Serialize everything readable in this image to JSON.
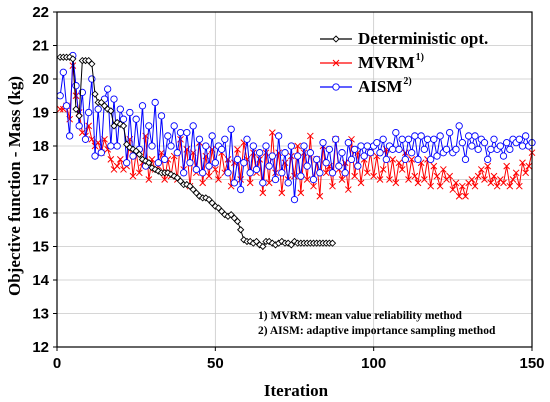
{
  "chart_data": {
    "type": "line",
    "xlabel": "Iteration",
    "ylabel": "Objective function - Mass (kg)",
    "xlim": [
      0,
      150
    ],
    "ylim": [
      12,
      22
    ],
    "x_ticks": [
      "0",
      "50",
      "100",
      "150"
    ],
    "y_ticks": [
      "12",
      "13",
      "14",
      "15",
      "16",
      "17",
      "18",
      "19",
      "20",
      "21",
      "22"
    ],
    "legend_position": "top-right",
    "series": [
      {
        "name": "Deterministic opt.",
        "sup": "",
        "color": "#000000",
        "marker": "diamond",
        "x": [
          1,
          2,
          3,
          4,
          5,
          6,
          7,
          8,
          9,
          10,
          11,
          12,
          13,
          14,
          15,
          16,
          17,
          18,
          19,
          20,
          21,
          22,
          23,
          24,
          25,
          26,
          27,
          28,
          29,
          30,
          31,
          32,
          33,
          34,
          35,
          36,
          37,
          38,
          39,
          40,
          41,
          42,
          43,
          44,
          45,
          46,
          47,
          48,
          49,
          50,
          51,
          52,
          53,
          54,
          55,
          56,
          57,
          58,
          59,
          60,
          61,
          62,
          63,
          64,
          65,
          66,
          67,
          68,
          69,
          70,
          71,
          72,
          73,
          74,
          75,
          76,
          77,
          78,
          79,
          80,
          81,
          82,
          83,
          84,
          85,
          86,
          87
        ],
        "y": [
          20.65,
          20.65,
          20.65,
          20.65,
          20.6,
          19.1,
          18.9,
          20.55,
          20.55,
          20.55,
          20.45,
          19.55,
          19.3,
          19.3,
          19.2,
          19.1,
          19.05,
          18.6,
          18.7,
          18.65,
          18.6,
          18.05,
          17.95,
          17.9,
          17.85,
          17.75,
          17.6,
          17.55,
          17.5,
          17.35,
          17.3,
          17.25,
          17.2,
          17.2,
          17.2,
          17.15,
          17.1,
          17.05,
          16.95,
          16.85,
          16.85,
          16.8,
          16.7,
          16.6,
          16.5,
          16.45,
          16.45,
          16.4,
          16.3,
          16.2,
          16.15,
          16.05,
          15.95,
          15.9,
          15.95,
          15.85,
          15.75,
          15.5,
          15.2,
          15.15,
          15.15,
          15.1,
          15.15,
          15.05,
          15.0,
          15.15,
          15.15,
          15.1,
          15.05,
          15.1,
          15.15,
          15.1,
          15.1,
          15.05,
          15.15,
          15.1,
          15.1,
          15.1,
          15.1,
          15.1,
          15.1,
          15.1,
          15.1,
          15.1,
          15.1,
          15.1,
          15.1
        ]
      },
      {
        "name": "MVRM",
        "sup": "1)",
        "color": "#ff0000",
        "marker": "x",
        "x": [
          1,
          2,
          3,
          4,
          5,
          6,
          7,
          8,
          9,
          10,
          11,
          12,
          13,
          14,
          15,
          16,
          17,
          18,
          19,
          20,
          21,
          22,
          23,
          24,
          25,
          26,
          27,
          28,
          29,
          30,
          31,
          32,
          33,
          34,
          35,
          36,
          37,
          38,
          39,
          40,
          41,
          42,
          43,
          44,
          45,
          46,
          47,
          48,
          49,
          50,
          51,
          52,
          53,
          54,
          55,
          56,
          57,
          58,
          59,
          60,
          61,
          62,
          63,
          64,
          65,
          66,
          67,
          68,
          69,
          70,
          71,
          72,
          73,
          74,
          75,
          76,
          77,
          78,
          79,
          80,
          81,
          82,
          83,
          84,
          85,
          86,
          87,
          88,
          89,
          90,
          91,
          92,
          93,
          94,
          95,
          96,
          97,
          98,
          99,
          100,
          101,
          102,
          103,
          104,
          105,
          106,
          107,
          108,
          109,
          110,
          111,
          112,
          113,
          114,
          115,
          116,
          117,
          118,
          119,
          120,
          121,
          122,
          123,
          124,
          125,
          126,
          127,
          128,
          129,
          130,
          131,
          132,
          133,
          134,
          135,
          136,
          137,
          138,
          139,
          140,
          141,
          142,
          143,
          144,
          145,
          146,
          147,
          148,
          149,
          150
        ],
        "y": [
          19.1,
          19.1,
          19.2,
          18.8,
          20.4,
          19.5,
          19.0,
          18.4,
          18.3,
          18.6,
          18.2,
          18.0,
          18.1,
          17.8,
          18.2,
          17.9,
          17.6,
          17.3,
          17.4,
          17.6,
          17.3,
          17.4,
          18.2,
          17.1,
          17.8,
          17.2,
          17.5,
          18.3,
          17.0,
          17.6,
          17.3,
          17.4,
          17.8,
          17.0,
          17.6,
          17.1,
          17.7,
          17.0,
          18.2,
          17.3,
          17.9,
          16.8,
          17.8,
          17.2,
          18.1,
          16.9,
          17.7,
          17.1,
          17.9,
          17.3,
          17.0,
          17.8,
          17.2,
          17.6,
          16.8,
          17.5,
          17.9,
          17.0,
          18.1,
          17.6,
          16.9,
          17.8,
          17.2,
          17.6,
          16.6,
          17.8,
          16.9,
          18.4,
          17.2,
          17.8,
          16.6,
          17.5,
          17.0,
          17.7,
          17.1,
          18.0,
          16.6,
          17.8,
          17.0,
          18.3,
          16.8,
          17.6,
          16.5,
          18.0,
          17.2,
          17.4,
          16.8,
          18.2,
          17.3,
          17.0,
          17.5,
          16.7,
          18.2,
          17.1,
          17.8,
          16.9,
          17.6,
          17.2,
          17.8,
          17.1,
          17.7,
          17.0,
          17.3,
          17.9,
          17.0,
          17.6,
          16.9,
          17.5,
          17.3,
          17.8,
          17.0,
          17.6,
          17.1,
          16.9,
          17.5,
          17.0,
          17.6,
          16.8,
          17.4,
          17.1,
          16.8,
          17.3,
          17.0,
          17.1,
          16.7,
          16.9,
          16.5,
          16.8,
          16.5,
          16.9,
          17.0,
          16.8,
          17.1,
          17.3,
          17.0,
          17.4,
          16.9,
          17.1,
          16.8,
          17.0,
          16.9,
          17.4,
          16.8,
          17.0,
          17.2,
          16.8,
          17.5,
          17.2,
          17.4,
          17.8
        ]
      },
      {
        "name": "AISM",
        "sup": "2)",
        "color": "#0000ff",
        "marker": "circle",
        "x": [
          1,
          2,
          3,
          4,
          5,
          6,
          7,
          8,
          9,
          10,
          11,
          12,
          13,
          14,
          15,
          16,
          17,
          18,
          19,
          20,
          21,
          22,
          23,
          24,
          25,
          26,
          27,
          28,
          29,
          30,
          31,
          32,
          33,
          34,
          35,
          36,
          37,
          38,
          39,
          40,
          41,
          42,
          43,
          44,
          45,
          46,
          47,
          48,
          49,
          50,
          51,
          52,
          53,
          54,
          55,
          56,
          57,
          58,
          59,
          60,
          61,
          62,
          63,
          64,
          65,
          66,
          67,
          68,
          69,
          70,
          71,
          72,
          73,
          74,
          75,
          76,
          77,
          78,
          79,
          80,
          81,
          82,
          83,
          84,
          85,
          86,
          87,
          88,
          89,
          90,
          91,
          92,
          93,
          94,
          95,
          96,
          97,
          98,
          99,
          100,
          101,
          102,
          103,
          104,
          105,
          106,
          107,
          108,
          109,
          110,
          111,
          112,
          113,
          114,
          115,
          116,
          117,
          118,
          119,
          120,
          121,
          122,
          123,
          124,
          125,
          126,
          127,
          128,
          129,
          130,
          131,
          132,
          133,
          134,
          135,
          136,
          137,
          138,
          139,
          140,
          141,
          142,
          143,
          144,
          145,
          146,
          147,
          148,
          149,
          150
        ],
        "y": [
          19.5,
          20.2,
          19.2,
          18.3,
          20.7,
          19.8,
          18.6,
          19.6,
          18.2,
          19.0,
          20.0,
          17.7,
          19.1,
          17.8,
          19.4,
          19.7,
          18.0,
          19.4,
          18.0,
          19.1,
          18.8,
          17.5,
          19.0,
          17.7,
          18.8,
          17.9,
          19.2,
          17.4,
          18.6,
          18.0,
          19.3,
          17.5,
          18.9,
          17.6,
          18.3,
          18.0,
          18.6,
          17.8,
          18.4,
          17.2,
          18.4,
          17.5,
          18.6,
          17.3,
          18.2,
          17.2,
          18.0,
          17.4,
          18.3,
          17.5,
          18.0,
          17.9,
          18.2,
          17.2,
          18.5,
          16.9,
          17.6,
          16.7,
          17.5,
          18.2,
          17.2,
          18.0,
          17.3,
          17.8,
          16.9,
          18.0,
          17.4,
          17.7,
          17.0,
          18.3,
          17.2,
          17.8,
          16.9,
          18.0,
          16.4,
          17.7,
          17.1,
          18.0,
          17.4,
          17.8,
          17.0,
          17.6,
          17.2,
          18.1,
          17.5,
          17.9,
          17.2,
          18.2,
          17.4,
          17.8,
          17.2,
          18.1,
          17.6,
          17.9,
          17.4,
          18.0,
          17.7,
          18.0,
          17.8,
          18.0,
          18.1,
          17.8,
          18.2,
          17.6,
          18.0,
          17.9,
          18.4,
          17.9,
          18.2,
          17.6,
          18.2,
          17.8,
          18.3,
          17.6,
          18.3,
          17.9,
          18.2,
          17.6,
          18.2,
          17.7,
          18.3,
          17.8,
          17.9,
          18.4,
          17.8,
          17.9,
          18.6,
          18.1,
          17.6,
          18.3,
          18.0,
          18.3,
          17.9,
          18.2,
          18.1,
          17.6,
          17.9,
          18.2,
          17.9,
          18.0,
          17.7,
          18.1,
          17.9,
          18.2,
          18.1,
          18.2,
          18.0,
          18.3,
          18.0,
          18.1
        ]
      }
    ],
    "notes": [
      "1) MVRM: mean value reliability method",
      "2) AISM: adaptive importance sampling method"
    ]
  }
}
